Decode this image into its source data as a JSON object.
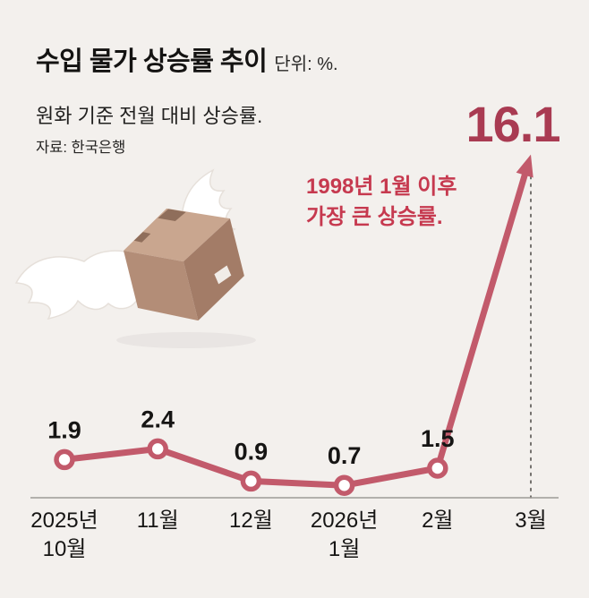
{
  "header": {
    "title": "수입 물가 상승률 추이",
    "unit": "단위: %.",
    "subtitle": "원화 기준 전월 대비 상승률.",
    "source": "자료: 한국은행"
  },
  "annotation": {
    "text": "1998년 1월 이후\n가장 큰 상승률.",
    "color": "#c6394f"
  },
  "illustration": "flying-parcel-box-with-wings",
  "chart_data": {
    "type": "line",
    "title": "수입 물가 상승률 추이",
    "unit": "%",
    "categories": [
      "2025년\n10월",
      "11월",
      "12월",
      "2026년\n1월",
      "2월",
      "3월"
    ],
    "values": [
      1.9,
      2.4,
      0.9,
      0.7,
      1.5,
      16.1
    ],
    "peak_label": "16.1",
    "line_color": "#c25a6b",
    "accent_color": "#a93b52",
    "baseline_color": "#9d9a96",
    "dashed_line_color": "#55524f",
    "ylim": [
      0,
      17
    ],
    "grid": false,
    "legend": false
  }
}
